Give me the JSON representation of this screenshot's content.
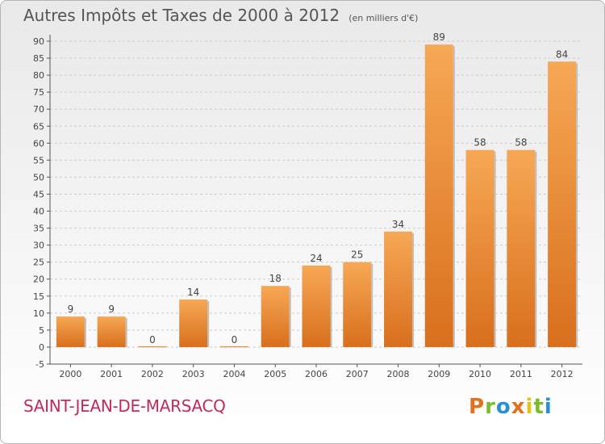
{
  "chart_data": {
    "type": "bar",
    "title": "Autres Impôts et Taxes de 2000 à 2012",
    "subtitle": "(en milliers d'€)",
    "categories": [
      "2000",
      "2001",
      "2002",
      "2003",
      "2004",
      "2005",
      "2006",
      "2007",
      "2008",
      "2009",
      "2010",
      "2011",
      "2012"
    ],
    "values": [
      9,
      9,
      0,
      14,
      0,
      18,
      24,
      25,
      34,
      89,
      58,
      58,
      84
    ],
    "data_labels": [
      "9",
      "9",
      "0",
      "14",
      "0",
      "18",
      "24",
      "25",
      "34",
      "89",
      "58",
      "58",
      "84"
    ],
    "ylim": [
      -5,
      90
    ],
    "yticks": [
      "-5",
      "0",
      "5",
      "10",
      "15",
      "20",
      "25",
      "30",
      "35",
      "40",
      "45",
      "50",
      "55",
      "60",
      "65",
      "70",
      "75",
      "80",
      "85",
      "90"
    ],
    "xlabel": "",
    "ylabel": "",
    "grid": "horizontal dashed",
    "colors": {
      "bar_top": "#f7a855",
      "bar_bottom": "#d86f1d",
      "axis": "#555555",
      "grid": "#cccccc"
    }
  },
  "footer": {
    "commune": "SAINT-JEAN-DE-MARSACQ",
    "brand": "Proxiti",
    "brand_colors": [
      "#e1721c",
      "#7dba2f",
      "#2b8fd6",
      "#e1721c",
      "#e3c21c",
      "#7dba2f",
      "#2b8fd6"
    ]
  }
}
